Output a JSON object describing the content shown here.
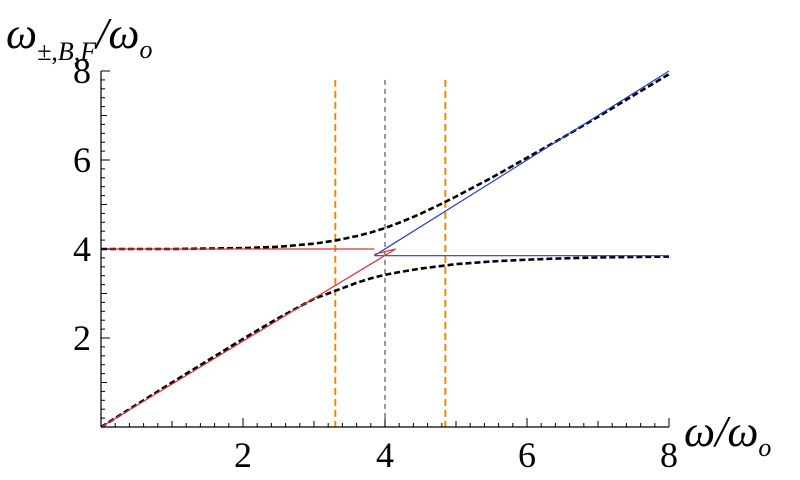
{
  "chart_data": {
    "type": "line",
    "ylabel": "ω±,B,F/ωo",
    "ylabel_parts": {
      "main": "ω",
      "sub": "±,B,F",
      "slash": "/",
      "main2": "ω",
      "sub2": "o"
    },
    "xlabel": "ω/ωo",
    "xlabel_parts": {
      "main": "ω",
      "slash": "/",
      "main2": "ω",
      "sub2": "o"
    },
    "xlim": [
      0,
      8
    ],
    "ylim": [
      0,
      8
    ],
    "xticks": [
      "2",
      "4",
      "6",
      "8"
    ],
    "yticks": [
      "2",
      "4",
      "6",
      "8"
    ],
    "grid": false,
    "colors": {
      "dashed_mode": "#000000",
      "blue_line": "#1f3fd8",
      "red_line": "#e83030",
      "orange_vline": "#ef8a00",
      "gray_vline": "#555555",
      "axis": "#000000"
    },
    "series": [
      {
        "style": "black-dashed",
        "x": [
          0,
          0.5,
          1,
          1.5,
          2,
          2.5,
          3,
          3.3,
          3.6,
          3.8,
          4,
          4.2,
          4.5,
          4.8,
          5,
          5.5,
          6,
          6.5,
          7,
          7.5,
          8
        ],
        "y": [
          4.0,
          4.0,
          4.0,
          4.01,
          4.02,
          4.05,
          4.12,
          4.19,
          4.29,
          4.37,
          4.47,
          4.59,
          4.79,
          5.02,
          5.18,
          5.6,
          6.05,
          6.5,
          6.97,
          7.45,
          7.93
        ]
      },
      {
        "style": "black-dashed",
        "x": [
          0,
          0.5,
          1,
          1.5,
          2,
          2.5,
          3,
          3.3,
          3.6,
          3.8,
          4,
          4.2,
          4.5,
          4.8,
          5,
          5.5,
          6,
          6.5,
          7,
          7.5,
          8
        ],
        "y": [
          0,
          0.5,
          1.0,
          1.49,
          1.98,
          2.45,
          2.88,
          3.06,
          3.24,
          3.34,
          3.42,
          3.48,
          3.56,
          3.62,
          3.66,
          3.72,
          3.76,
          3.79,
          3.81,
          3.82,
          3.83
        ]
      },
      {
        "style": "blue",
        "x": [
          3.85,
          8
        ],
        "y": [
          3.85,
          8
        ]
      },
      {
        "style": "blue",
        "x": [
          3.85,
          8
        ],
        "y": [
          3.85,
          3.85
        ]
      },
      {
        "style": "red",
        "x": [
          0,
          3.85
        ],
        "y": [
          4.0,
          4.0
        ]
      },
      {
        "style": "red",
        "x": [
          0,
          4.15
        ],
        "y": [
          0,
          4.0
        ]
      },
      {
        "style": "red",
        "x": [
          3.85,
          4.15
        ],
        "y": [
          3.88,
          4.0
        ]
      }
    ],
    "vlines": [
      {
        "x": 3.3,
        "style": "orange-dashed"
      },
      {
        "x": 4.0,
        "style": "gray-dashed"
      },
      {
        "x": 4.85,
        "style": "orange-dashed"
      }
    ]
  }
}
